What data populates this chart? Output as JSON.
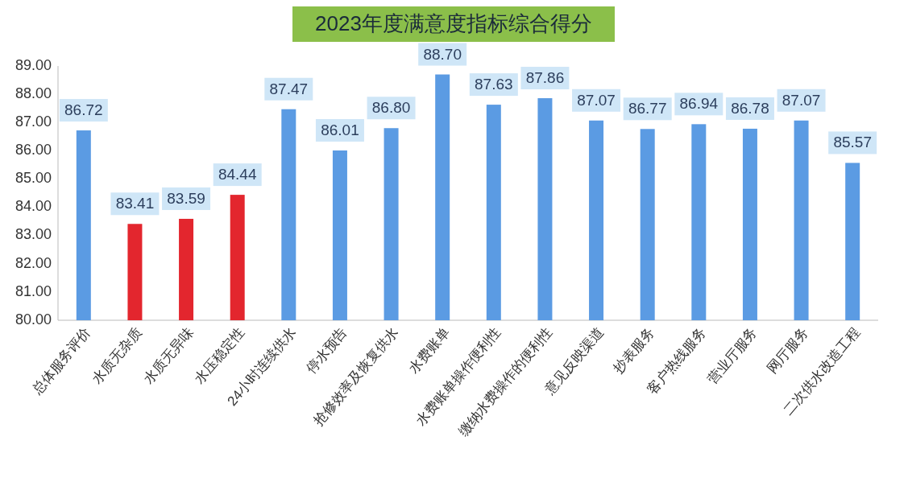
{
  "chart_data": {
    "type": "bar",
    "title": "2023年度满意度指标综合得分",
    "categories": [
      "总体服务评价",
      "水质无杂质",
      "水质无异味",
      "水压稳定性",
      "24小时连续供水",
      "停水预告",
      "抢修效率及恢复供水",
      "水费账单",
      "水费账单操作便利性",
      "缴纳水费操作的便利性",
      "意见反映渠道",
      "抄表服务",
      "客户热线服务",
      "营业厅服务",
      "网厅服务",
      "二次供水改造工程"
    ],
    "values": [
      86.72,
      83.41,
      83.59,
      84.44,
      87.47,
      86.01,
      86.8,
      88.7,
      87.63,
      87.86,
      87.07,
      86.77,
      86.94,
      86.78,
      87.07,
      85.57
    ],
    "value_labels": [
      "86.72",
      "83.41",
      "83.59",
      "84.44",
      "87.47",
      "86.01",
      "86.80",
      "88.70",
      "87.63",
      "87.86",
      "87.07",
      "86.77",
      "86.94",
      "86.78",
      "87.07",
      "85.57"
    ],
    "colors": [
      "#5b9be3",
      "#e3262e",
      "#e3262e",
      "#e3262e",
      "#5b9be3",
      "#5b9be3",
      "#5b9be3",
      "#5b9be3",
      "#5b9be3",
      "#5b9be3",
      "#5b9be3",
      "#5b9be3",
      "#5b9be3",
      "#5b9be3",
      "#5b9be3",
      "#5b9be3"
    ],
    "ylim": [
      80,
      89
    ],
    "yticks": [
      {
        "value": 80,
        "label": "80.00"
      },
      {
        "value": 81,
        "label": "81.00"
      },
      {
        "value": 82,
        "label": "82.00"
      },
      {
        "value": 83,
        "label": "83.00"
      },
      {
        "value": 84,
        "label": "84.00"
      },
      {
        "value": 85,
        "label": "85.00"
      },
      {
        "value": 86,
        "label": "86.00"
      },
      {
        "value": 87,
        "label": "87.00"
      },
      {
        "value": 88,
        "label": "88.00"
      },
      {
        "value": 89,
        "label": "89.00"
      }
    ],
    "grid": false
  }
}
